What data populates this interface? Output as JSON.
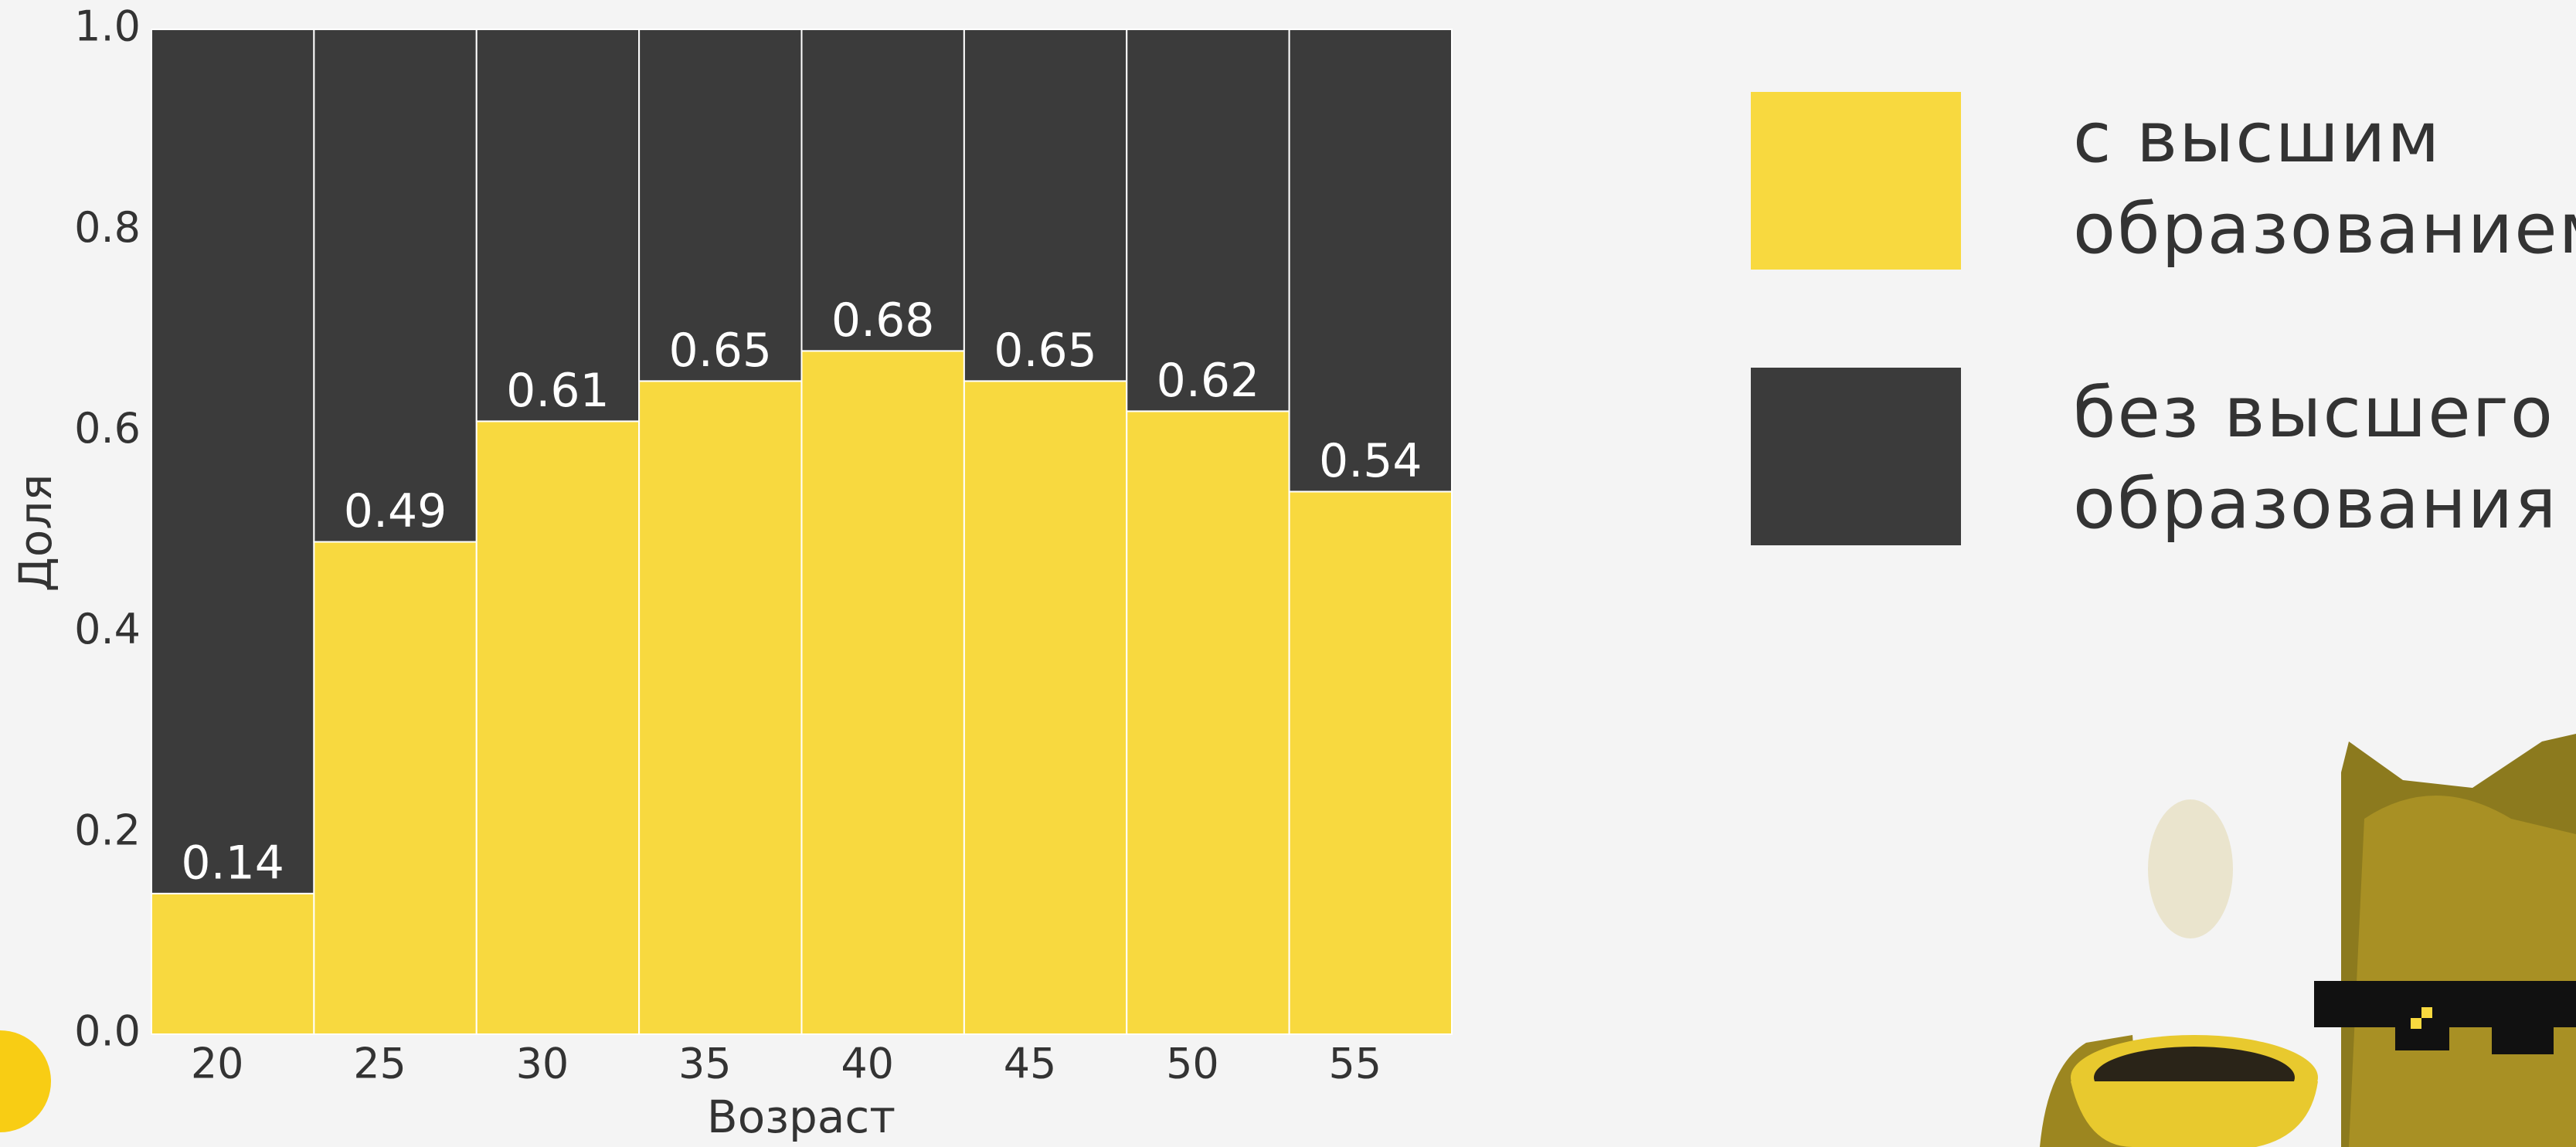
{
  "chart_data": {
    "type": "stacked_bar",
    "x_label": "Возраст",
    "y_label": "Доля",
    "categories": [
      "20",
      "25",
      "30",
      "35",
      "40",
      "45",
      "50",
      "55"
    ],
    "series": [
      {
        "name": "с высшим образованием",
        "color": "#f8d93f",
        "values": [
          0.14,
          0.49,
          0.61,
          0.65,
          0.68,
          0.65,
          0.62,
          0.54
        ]
      },
      {
        "name": "без высшего образования",
        "color": "#3b3b3b",
        "values": [
          0.86,
          0.51,
          0.39,
          0.35,
          0.32,
          0.35,
          0.38,
          0.46
        ]
      }
    ],
    "ylim": [
      0,
      1
    ],
    "yticks": [
      {
        "value": 0,
        "label": "0.0"
      },
      0.2,
      0.4,
      0.6,
      0.8,
      {
        "value": 1,
        "label": "1.0"
      }
    ],
    "legend": "right"
  }
}
